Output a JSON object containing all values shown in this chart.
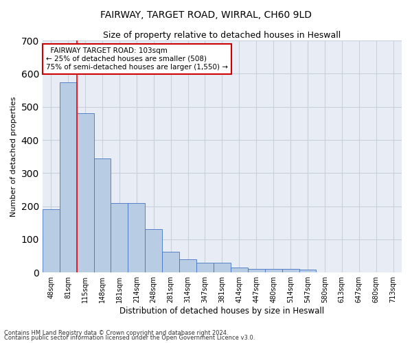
{
  "title": "FAIRWAY, TARGET ROAD, WIRRAL, CH60 9LD",
  "subtitle": "Size of property relative to detached houses in Heswall",
  "xlabel": "Distribution of detached houses by size in Heswall",
  "ylabel": "Number of detached properties",
  "footnote1": "Contains HM Land Registry data © Crown copyright and database right 2024.",
  "footnote2": "Contains public sector information licensed under the Open Government Licence v3.0.",
  "categories": [
    "48sqm",
    "81sqm",
    "115sqm",
    "148sqm",
    "181sqm",
    "214sqm",
    "248sqm",
    "281sqm",
    "314sqm",
    "347sqm",
    "381sqm",
    "414sqm",
    "447sqm",
    "480sqm",
    "514sqm",
    "547sqm",
    "580sqm",
    "613sqm",
    "647sqm",
    "680sqm",
    "713sqm"
  ],
  "values": [
    190,
    575,
    480,
    345,
    210,
    210,
    130,
    62,
    40,
    30,
    30,
    14,
    10,
    10,
    10,
    8,
    0,
    0,
    0,
    0,
    0
  ],
  "bar_color": "#b8cce4",
  "bar_edge_color": "#4472c4",
  "grid_color": "#c8d0dc",
  "bg_color": "#e8edf5",
  "red_line_x": 1.5,
  "annotation_text": "  FAIRWAY TARGET ROAD: 103sqm\n← 25% of detached houses are smaller (508)\n75% of semi-detached houses are larger (1,550) →",
  "annotation_box_color": "#cc0000",
  "ylim": [
    0,
    700
  ],
  "yticks": [
    0,
    100,
    200,
    300,
    400,
    500,
    600,
    700
  ],
  "title_fontsize": 10,
  "subtitle_fontsize": 9,
  "xlabel_fontsize": 8.5,
  "ylabel_fontsize": 8,
  "tick_fontsize": 7,
  "annotation_fontsize": 7.5,
  "footnote_fontsize": 6
}
